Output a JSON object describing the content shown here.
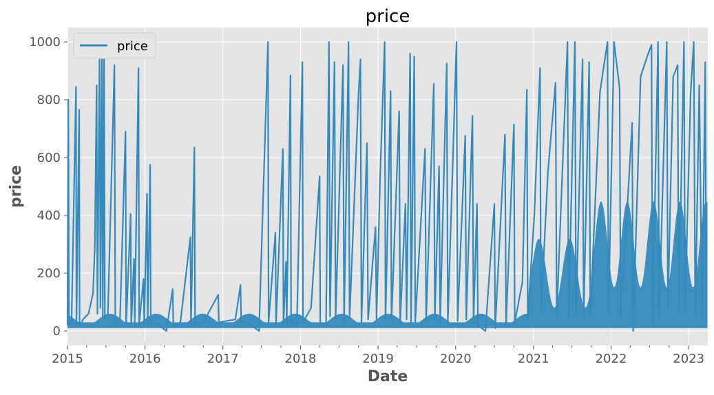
{
  "chart_data": {
    "type": "line",
    "title": "price",
    "xlabel": "Date",
    "ylabel": "price",
    "xlim": [
      "2015-01-01",
      "2023-04-01"
    ],
    "ylim": [
      -50,
      1050
    ],
    "x_ticks": [
      "2015",
      "2016",
      "2017",
      "2018",
      "2019",
      "2020",
      "2021",
      "2022",
      "2023"
    ],
    "y_ticks": [
      0,
      200,
      400,
      600,
      800,
      1000
    ],
    "grid": true,
    "legend": {
      "position": "top-left",
      "entries": [
        "price"
      ]
    },
    "series": [
      {
        "name": "price",
        "color": "#348abd",
        "points": [
          [
            "2015-01-01",
            20
          ],
          [
            "2015-01-05",
            800
          ],
          [
            "2015-01-08",
            15
          ],
          [
            "2015-01-20",
            30
          ],
          [
            "2015-02-10",
            845
          ],
          [
            "2015-02-12",
            20
          ],
          [
            "2015-02-25",
            765
          ],
          [
            "2015-02-27",
            15
          ],
          [
            "2015-03-15",
            40
          ],
          [
            "2015-04-10",
            60
          ],
          [
            "2015-05-01",
            130
          ],
          [
            "2015-05-10",
            300
          ],
          [
            "2015-05-18",
            850
          ],
          [
            "2015-05-22",
            60
          ],
          [
            "2015-06-01",
            960
          ],
          [
            "2015-06-05",
            80
          ],
          [
            "2015-06-12",
            950
          ],
          [
            "2015-06-16",
            50
          ],
          [
            "2015-06-22",
            1000
          ],
          [
            "2015-06-26",
            40
          ],
          [
            "2015-07-10",
            60
          ],
          [
            "2015-08-10",
            920
          ],
          [
            "2015-08-14",
            20
          ],
          [
            "2015-09-05",
            40
          ],
          [
            "2015-10-01",
            690
          ],
          [
            "2015-10-04",
            20
          ],
          [
            "2015-10-25",
            405
          ],
          [
            "2015-10-28",
            20
          ],
          [
            "2015-11-10",
            250
          ],
          [
            "2015-11-13",
            15
          ],
          [
            "2015-12-01",
            910
          ],
          [
            "2015-12-04",
            25
          ],
          [
            "2015-12-25",
            180
          ],
          [
            "2015-12-28",
            20
          ],
          [
            "2016-01-10",
            475
          ],
          [
            "2016-01-13",
            20
          ],
          [
            "2016-01-25",
            575
          ],
          [
            "2016-01-28",
            20
          ],
          [
            "2016-03-01",
            25
          ],
          [
            "2016-04-10",
            0
          ],
          [
            "2016-05-10",
            145
          ],
          [
            "2016-05-13",
            15
          ],
          [
            "2016-06-15",
            30
          ],
          [
            "2016-08-01",
            325
          ],
          [
            "2016-08-04",
            15
          ],
          [
            "2016-08-20",
            635
          ],
          [
            "2016-08-23",
            20
          ],
          [
            "2016-10-01",
            30
          ],
          [
            "2016-12-10",
            125
          ],
          [
            "2016-12-13",
            30
          ],
          [
            "2017-03-01",
            40
          ],
          [
            "2017-03-25",
            160
          ],
          [
            "2017-03-28",
            35
          ],
          [
            "2017-05-15",
            20
          ],
          [
            "2017-06-20",
            0
          ],
          [
            "2017-08-01",
            1000
          ],
          [
            "2017-08-04",
            30
          ],
          [
            "2017-09-05",
            340
          ],
          [
            "2017-09-08",
            20
          ],
          [
            "2017-10-10",
            630
          ],
          [
            "2017-10-13",
            25
          ],
          [
            "2017-10-25",
            240
          ],
          [
            "2017-10-28",
            20
          ],
          [
            "2017-11-15",
            885
          ],
          [
            "2017-11-18",
            30
          ],
          [
            "2017-12-15",
            20
          ],
          [
            "2018-01-10",
            930
          ],
          [
            "2018-01-13",
            30
          ],
          [
            "2018-02-20",
            80
          ],
          [
            "2018-04-01",
            535
          ],
          [
            "2018-04-04",
            30
          ],
          [
            "2018-05-01",
            20
          ],
          [
            "2018-05-15",
            1000
          ],
          [
            "2018-05-20",
            50
          ],
          [
            "2018-06-10",
            930
          ],
          [
            "2018-06-15",
            40
          ],
          [
            "2018-07-20",
            920
          ],
          [
            "2018-07-25",
            30
          ],
          [
            "2018-08-15",
            1000
          ],
          [
            "2018-08-20",
            40
          ],
          [
            "2018-10-01",
            820
          ],
          [
            "2018-10-10",
            940
          ],
          [
            "2018-10-15",
            30
          ],
          [
            "2018-11-10",
            650
          ],
          [
            "2018-11-15",
            40
          ],
          [
            "2018-12-20",
            360
          ],
          [
            "2018-12-25",
            40
          ],
          [
            "2019-01-10",
            520
          ],
          [
            "2019-02-01",
            1000
          ],
          [
            "2019-02-05",
            40
          ],
          [
            "2019-03-01",
            830
          ],
          [
            "2019-03-05",
            35
          ],
          [
            "2019-04-10",
            760
          ],
          [
            "2019-04-15",
            30
          ],
          [
            "2019-05-10",
            440
          ],
          [
            "2019-05-15",
            40
          ],
          [
            "2019-06-01",
            960
          ],
          [
            "2019-06-05",
            30
          ],
          [
            "2019-06-20",
            950
          ],
          [
            "2019-06-25",
            30
          ],
          [
            "2019-08-10",
            630
          ],
          [
            "2019-08-15",
            35
          ],
          [
            "2019-09-20",
            855
          ],
          [
            "2019-09-25",
            40
          ],
          [
            "2019-10-15",
            570
          ],
          [
            "2019-10-20",
            30
          ],
          [
            "2019-11-20",
            925
          ],
          [
            "2019-11-25",
            30
          ],
          [
            "2020-01-05",
            1000
          ],
          [
            "2020-01-10",
            35
          ],
          [
            "2020-02-15",
            675
          ],
          [
            "2020-02-20",
            40
          ],
          [
            "2020-03-20",
            745
          ],
          [
            "2020-03-25",
            30
          ],
          [
            "2020-04-10",
            440
          ],
          [
            "2020-04-15",
            20
          ],
          [
            "2020-05-20",
            0
          ],
          [
            "2020-07-01",
            440
          ],
          [
            "2020-07-05",
            10
          ],
          [
            "2020-08-20",
            680
          ],
          [
            "2020-08-25",
            20
          ],
          [
            "2020-10-01",
            715
          ],
          [
            "2020-10-05",
            30
          ],
          [
            "2020-11-10",
            170
          ],
          [
            "2020-12-01",
            835
          ],
          [
            "2020-12-05",
            40
          ],
          [
            "2021-01-05",
            400
          ],
          [
            "2021-02-01",
            910
          ],
          [
            "2021-02-05",
            60
          ],
          [
            "2021-03-10",
            550
          ],
          [
            "2021-04-15",
            860
          ],
          [
            "2021-04-20",
            50
          ],
          [
            "2021-06-10",
            1000
          ],
          [
            "2021-06-15",
            40
          ],
          [
            "2021-07-15",
            1000
          ],
          [
            "2021-07-20",
            50
          ],
          [
            "2021-08-20",
            940
          ],
          [
            "2021-08-25",
            40
          ],
          [
            "2021-09-20",
            930
          ],
          [
            "2021-09-25",
            50
          ],
          [
            "2021-11-10",
            830
          ],
          [
            "2021-12-15",
            1000
          ],
          [
            "2021-12-20",
            60
          ],
          [
            "2022-01-15",
            1000
          ],
          [
            "2022-02-10",
            840
          ],
          [
            "2022-02-15",
            50
          ],
          [
            "2022-03-20",
            450
          ],
          [
            "2022-04-10",
            720
          ],
          [
            "2022-04-15",
            0
          ],
          [
            "2022-05-20",
            880
          ],
          [
            "2022-06-20",
            950
          ],
          [
            "2022-07-10",
            990
          ],
          [
            "2022-07-15",
            20
          ],
          [
            "2022-08-10",
            1000
          ],
          [
            "2022-08-15",
            50
          ],
          [
            "2022-09-20",
            1000
          ],
          [
            "2022-09-25",
            80
          ],
          [
            "2022-10-20",
            880
          ],
          [
            "2022-11-10",
            920
          ],
          [
            "2022-11-15",
            60
          ],
          [
            "2022-12-10",
            1000
          ],
          [
            "2022-12-15",
            70
          ],
          [
            "2023-01-10",
            820
          ],
          [
            "2023-01-25",
            1000
          ],
          [
            "2023-02-01",
            50
          ],
          [
            "2023-02-20",
            850
          ],
          [
            "2023-03-05",
            40
          ],
          [
            "2023-03-20",
            930
          ],
          [
            "2023-03-25",
            40
          ]
        ]
      }
    ]
  }
}
